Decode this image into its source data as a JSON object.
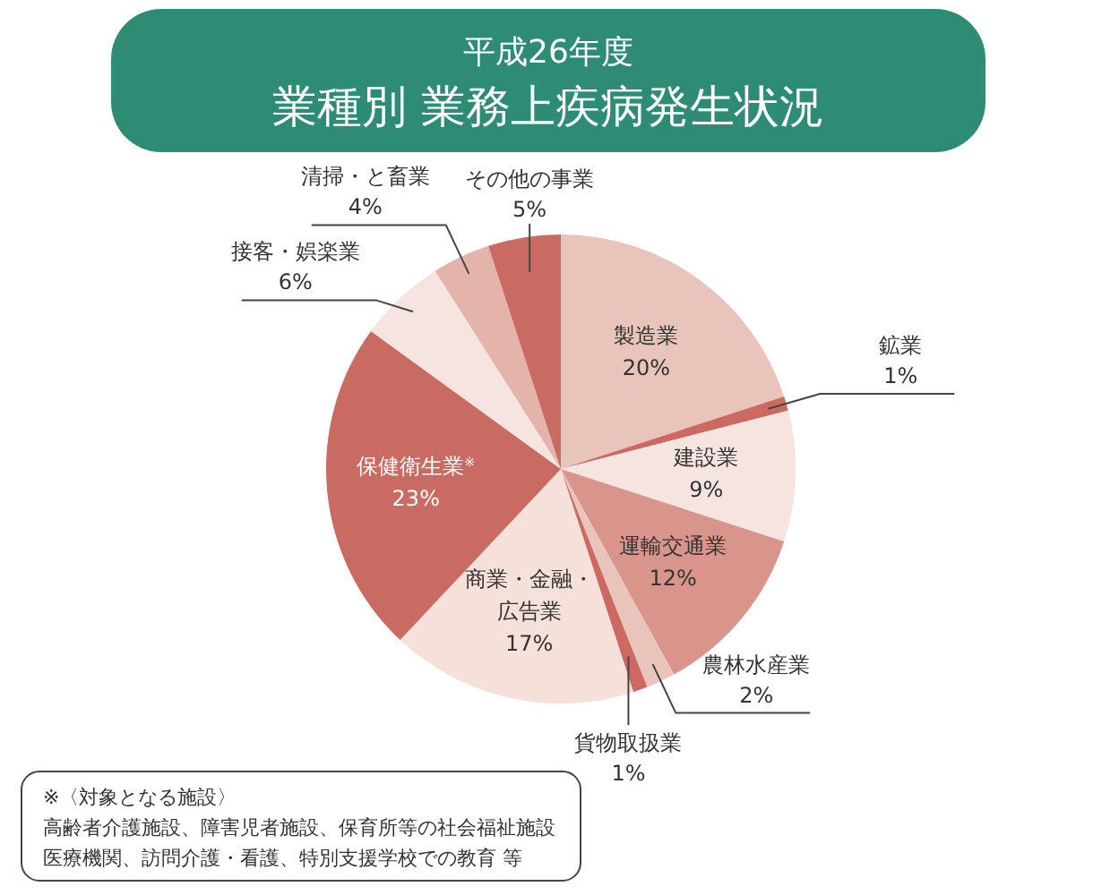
{
  "chart_data": {
    "type": "pie",
    "subtitle": "平成26年度",
    "title": "業種別 業務上疾病発生状況",
    "categories": [
      "製造業",
      "鉱業",
      "建設業",
      "運輸交通業",
      "農林水産業",
      "貨物取扱業",
      "商業・金融・広告業",
      "保健衛生業$^{※}$",
      "接客・娯楽業",
      "清掃・と畜業",
      "その他の事業"
    ],
    "values": [
      20,
      1,
      9,
      12,
      2,
      1,
      17,
      23,
      6,
      4,
      5
    ],
    "colors": [
      "#e8c4ba",
      "#cc6a62",
      "#f6e4e0",
      "#d9958b",
      "#e8c4ba",
      "#cc6a62",
      "#f5e0da",
      "#c96a63",
      "#f6e4e0",
      "#e4b3aa",
      "#c96a63"
    ],
    "value_labels": [
      "20%",
      "1%",
      "9%",
      "12%",
      "2%",
      "1%",
      "17%",
      "23%",
      "6%",
      "4%",
      "5%"
    ],
    "annotations": [
      "※〈対象となる施設〉",
      "高齢者介護施設、障害児者施設、保育所等の社会福祉施設",
      "医療機関、訪問介護・看護、特別支援学校での教育 等"
    ]
  }
}
